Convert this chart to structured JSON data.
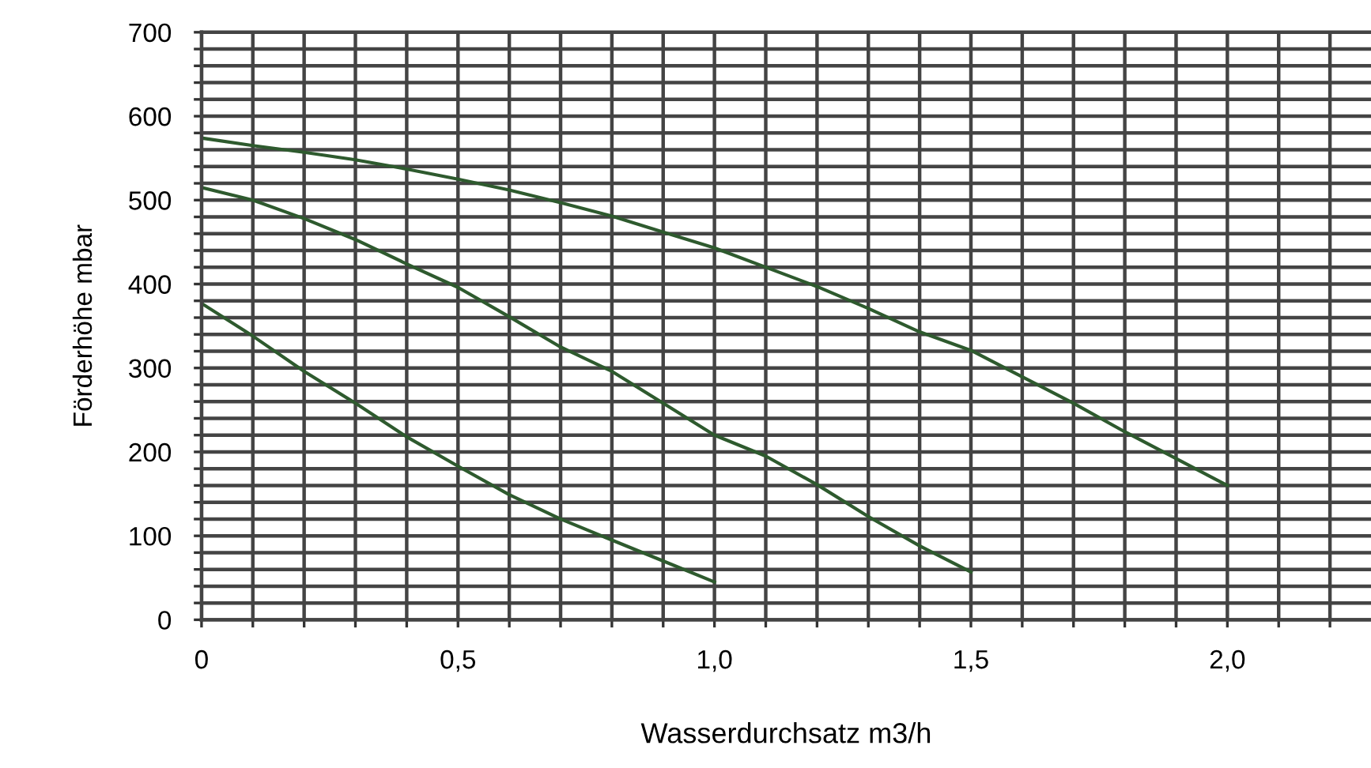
{
  "chart_data": {
    "type": "line",
    "xlabel": "Wasserdurchsatz m3/h",
    "ylabel": "Förderhöhe mbar",
    "xlim": [
      0,
      2.28
    ],
    "ylim": [
      0,
      700
    ],
    "xticks": [
      0,
      {
        "value": 0.1,
        "label": null
      },
      {
        "value": 0.2,
        "label": null
      },
      {
        "value": 0.3,
        "label": null
      },
      {
        "value": 0.4,
        "label": null
      },
      {
        "value": 0.5,
        "label": "0,5"
      },
      {
        "value": 0.6,
        "label": null
      },
      {
        "value": 0.7,
        "label": null
      },
      {
        "value": 0.8,
        "label": null
      },
      {
        "value": 0.9,
        "label": null
      },
      {
        "value": 1.0,
        "label": "1,0"
      },
      {
        "value": 1.1,
        "label": null
      },
      {
        "value": 1.2,
        "label": null
      },
      {
        "value": 1.3,
        "label": null
      },
      {
        "value": 1.4,
        "label": null
      },
      {
        "value": 1.5,
        "label": "1,5"
      },
      {
        "value": 1.6,
        "label": null
      },
      {
        "value": 1.7,
        "label": null
      },
      {
        "value": 1.8,
        "label": null
      },
      {
        "value": 1.9,
        "label": null
      },
      {
        "value": 2.0,
        "label": "2,0"
      },
      {
        "value": 2.1,
        "label": null
      },
      {
        "value": 2.2,
        "label": null
      }
    ],
    "yticks": [
      0,
      {
        "value": 20,
        "label": null
      },
      {
        "value": 40,
        "label": null
      },
      {
        "value": 60,
        "label": null
      },
      {
        "value": 80,
        "label": null
      },
      100,
      {
        "value": 120,
        "label": null
      },
      {
        "value": 140,
        "label": null
      },
      {
        "value": 160,
        "label": null
      },
      {
        "value": 180,
        "label": null
      },
      200,
      {
        "value": 220,
        "label": null
      },
      {
        "value": 240,
        "label": null
      },
      {
        "value": 260,
        "label": null
      },
      {
        "value": 280,
        "label": null
      },
      300,
      {
        "value": 320,
        "label": null
      },
      {
        "value": 340,
        "label": null
      },
      {
        "value": 360,
        "label": null
      },
      {
        "value": 380,
        "label": null
      },
      400,
      {
        "value": 420,
        "label": null
      },
      {
        "value": 440,
        "label": null
      },
      {
        "value": 460,
        "label": null
      },
      {
        "value": 480,
        "label": null
      },
      500,
      {
        "value": 520,
        "label": null
      },
      {
        "value": 540,
        "label": null
      },
      {
        "value": 560,
        "label": null
      },
      {
        "value": 580,
        "label": null
      },
      600,
      {
        "value": 620,
        "label": null
      },
      {
        "value": 640,
        "label": null
      },
      {
        "value": 660,
        "label": null
      },
      {
        "value": 680,
        "label": null
      },
      700
    ],
    "grid": true,
    "marker": "none",
    "line_style": "solid",
    "series": [
      {
        "color": "#2e5a2e",
        "x": [
          0,
          0.1,
          0.2,
          0.3,
          0.4,
          0.5,
          0.6,
          0.7,
          0.8,
          0.9,
          1.0,
          1.2,
          1.3,
          1.4,
          1.5,
          1.7,
          1.8,
          1.9,
          2.0
        ],
        "values": [
          574,
          565,
          557,
          548,
          537,
          525,
          512,
          497,
          481,
          462,
          443,
          397,
          371,
          343,
          321,
          258,
          224,
          192,
          160
        ]
      },
      {
        "color": "#2e5a2e",
        "x": [
          0,
          0.1,
          0.2,
          0.3,
          0.4,
          0.5,
          0.6,
          0.7,
          0.8,
          0.9,
          1.0,
          1.1,
          1.2,
          1.3,
          1.4,
          1.5
        ],
        "values": [
          515,
          500,
          478,
          453,
          424,
          396,
          361,
          325,
          296,
          258,
          220,
          195,
          161,
          123,
          88,
          57
        ]
      },
      {
        "color": "#2e5a2e",
        "x": [
          0,
          0.1,
          0.2,
          0.3,
          0.4,
          0.5,
          0.6,
          0.7,
          0.8,
          0.9,
          1.0
        ],
        "values": [
          377,
          338,
          296,
          258,
          218,
          183,
          149,
          120,
          95,
          70,
          45
        ]
      }
    ]
  }
}
